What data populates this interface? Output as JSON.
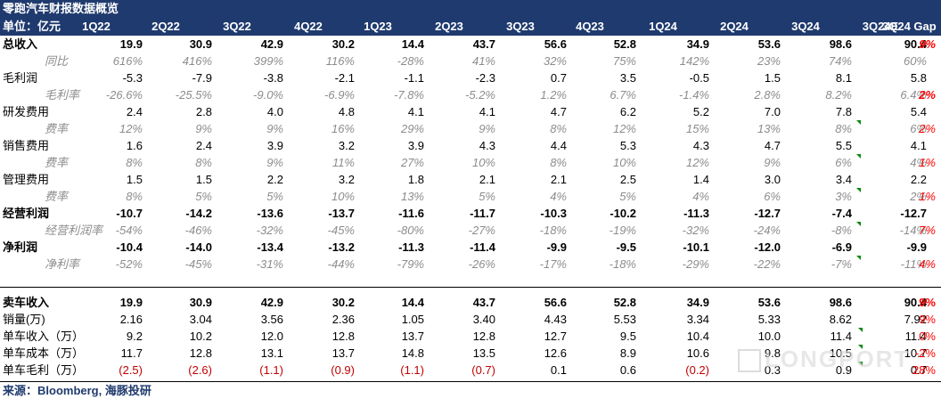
{
  "title": "零跑汽车财报数据概览",
  "header": [
    "单位：亿元",
    "1Q22",
    "2Q22",
    "3Q22",
    "4Q22",
    "1Q23",
    "2Q23",
    "3Q23",
    "4Q23",
    "1Q24",
    "2Q24",
    "3Q24",
    "3Q24E",
    "3Q24 Gap"
  ],
  "rows": [
    {
      "label": "总收入",
      "vals": [
        "19.9",
        "30.9",
        "42.9",
        "30.2",
        "14.4",
        "43.7",
        "56.6",
        "52.8",
        "34.9",
        "53.6",
        "98.6",
        "90.4"
      ],
      "gap": "9%"
    },
    {
      "label": "同比",
      "vals": [
        "616%",
        "416%",
        "399%",
        "116%",
        "-28%",
        "41%",
        "32%",
        "75%",
        "142%",
        "23%",
        "74%",
        "60%"
      ],
      "gap": ""
    },
    {
      "label": "毛利润",
      "vals": [
        "-5.3",
        "-7.9",
        "-3.8",
        "-2.1",
        "-1.1",
        "-2.3",
        "0.7",
        "3.5",
        "-0.5",
        "1.5",
        "8.1",
        "5.8"
      ],
      "gap": ""
    },
    {
      "label": "毛利率",
      "vals": [
        "-26.6%",
        "-25.5%",
        "-9.0%",
        "-6.9%",
        "-7.8%",
        "-5.2%",
        "1.2%",
        "6.7%",
        "-1.4%",
        "2.8%",
        "8.2%",
        "6.4%"
      ],
      "gap": "2%"
    },
    {
      "label": "研发费用",
      "vals": [
        "2.4",
        "2.8",
        "4.0",
        "4.8",
        "4.1",
        "4.1",
        "4.7",
        "6.2",
        "5.2",
        "7.0",
        "7.8",
        "5.4"
      ],
      "gap": ""
    },
    {
      "label": "费率",
      "vals": [
        "12%",
        "9%",
        "9%",
        "16%",
        "29%",
        "9%",
        "8%",
        "12%",
        "15%",
        "13%",
        "8%",
        "6%"
      ],
      "gap": "2%"
    },
    {
      "label": "销售费用",
      "vals": [
        "1.6",
        "2.4",
        "3.9",
        "3.2",
        "3.9",
        "4.3",
        "4.4",
        "5.3",
        "4.3",
        "4.7",
        "5.5",
        "4.1"
      ],
      "gap": ""
    },
    {
      "label": "费率",
      "vals": [
        "8%",
        "8%",
        "9%",
        "11%",
        "27%",
        "10%",
        "8%",
        "10%",
        "12%",
        "9%",
        "6%",
        "4%"
      ],
      "gap": "1%"
    },
    {
      "label": "管理费用",
      "vals": [
        "1.5",
        "1.5",
        "2.2",
        "3.2",
        "1.8",
        "2.1",
        "2.1",
        "2.5",
        "1.4",
        "3.0",
        "3.4",
        "2.2"
      ],
      "gap": ""
    },
    {
      "label": "费率",
      "vals": [
        "8%",
        "5%",
        "5%",
        "10%",
        "13%",
        "5%",
        "4%",
        "5%",
        "4%",
        "6%",
        "3%",
        "2%"
      ],
      "gap": "1%"
    },
    {
      "label": "经营利润",
      "vals": [
        "-10.7",
        "-14.2",
        "-13.6",
        "-13.7",
        "-11.6",
        "-11.7",
        "-10.3",
        "-10.2",
        "-11.3",
        "-12.7",
        "-7.4",
        "-12.7"
      ],
      "gap": ""
    },
    {
      "label": "经营利润率",
      "vals": [
        "-54%",
        "-46%",
        "-32%",
        "-45%",
        "-80%",
        "-27%",
        "-18%",
        "-19%",
        "-32%",
        "-24%",
        "-8%",
        "-14%"
      ],
      "gap": "7%"
    },
    {
      "label": "净利润",
      "vals": [
        "-10.4",
        "-14.0",
        "-13.4",
        "-13.2",
        "-11.3",
        "-11.4",
        "-9.9",
        "-9.5",
        "-10.1",
        "-12.0",
        "-6.9",
        "-9.9"
      ],
      "gap": ""
    },
    {
      "label": "净利率",
      "vals": [
        "-52%",
        "-45%",
        "-31%",
        "-44%",
        "-79%",
        "-26%",
        "-17%",
        "-18%",
        "-29%",
        "-22%",
        "-7%",
        "-11%"
      ],
      "gap": "4%"
    },
    {
      "label": "卖车收入",
      "vals": [
        "19.9",
        "30.9",
        "42.9",
        "30.2",
        "14.4",
        "43.7",
        "56.6",
        "52.8",
        "34.9",
        "53.6",
        "98.6",
        "90.4"
      ],
      "gap": "9%"
    },
    {
      "label": "销量(万)",
      "vals": [
        "2.16",
        "3.04",
        "3.56",
        "2.36",
        "1.05",
        "3.40",
        "4.43",
        "5.53",
        "3.34",
        "5.33",
        "8.62",
        "7.92"
      ],
      "gap": "9%"
    },
    {
      "label": "单车收入（万）",
      "vals": [
        "9.2",
        "10.2",
        "12.0",
        "12.8",
        "13.7",
        "12.8",
        "12.7",
        "9.5",
        "10.4",
        "10.0",
        "11.4",
        "11.4"
      ],
      "gap": "0%"
    },
    {
      "label": "单车成本（万）",
      "vals": [
        "11.7",
        "12.8",
        "13.1",
        "13.7",
        "14.8",
        "13.5",
        "12.6",
        "8.9",
        "10.6",
        "9.8",
        "10.5",
        "10.7"
      ],
      "gap": "-2%"
    },
    {
      "label": "单车毛利（万）",
      "vals": [
        "(2.5)",
        "(2.6)",
        "(1.1)",
        "(0.9)",
        "(1.1)",
        "(0.7)",
        "0.1",
        "0.6",
        "(0.2)",
        "0.3",
        "0.9",
        "0.7"
      ],
      "gap": "28%"
    }
  ],
  "source": "来源：Bloomberg, 海豚投研",
  "watermark": "LONGPORT"
}
